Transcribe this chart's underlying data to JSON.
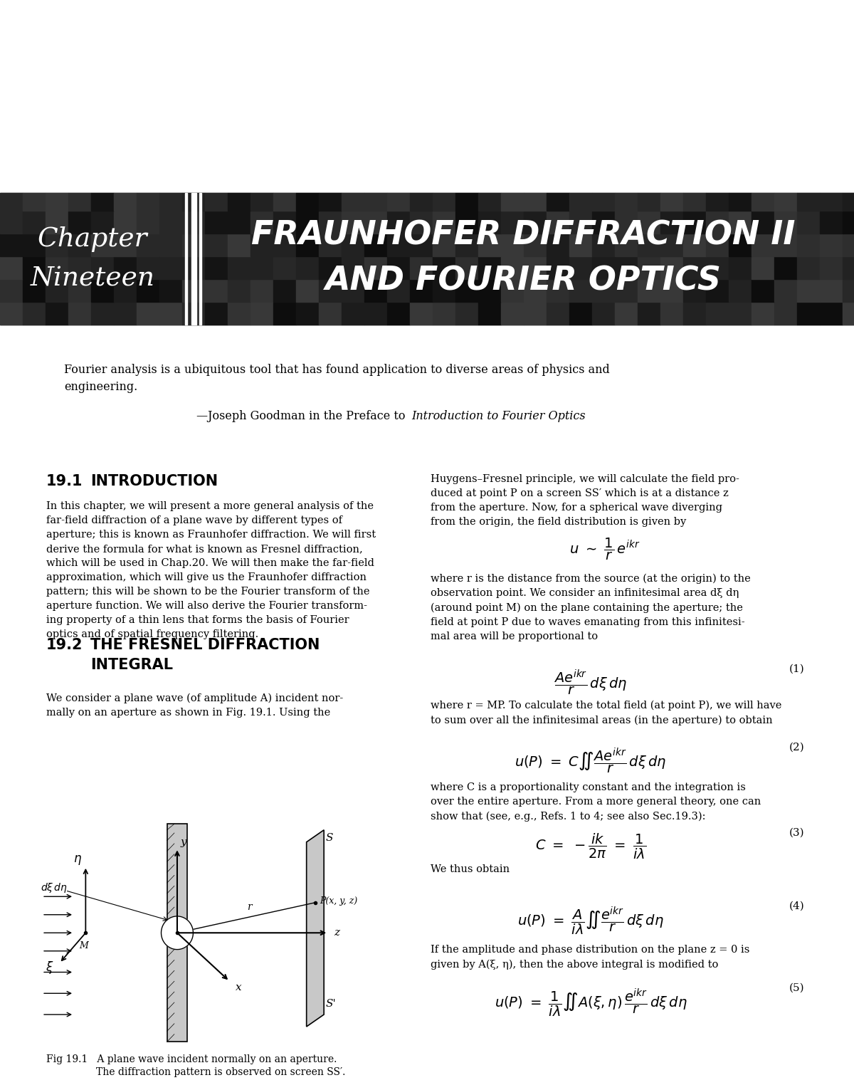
{
  "bg_color": "#ffffff",
  "header_bg": "#1c1c1c",
  "chapter_word1": "Chapter",
  "chapter_word2": "Nineteen",
  "title_line1": "FRAUNHOFER DIFFRACTION II",
  "title_line2": "AND FOURIER OPTICS",
  "quote_line1": "Fourier analysis is a ubiquitous tool that has found application to diverse areas of physics and",
  "quote_line2": "engineering.",
  "quote_attr_plain": "—Joseph Goodman in the Preface to ",
  "quote_attr_italic": "Introduction to Fourier Optics",
  "sec1_num": "19.1",
  "sec1_title": "INTRODUCTION",
  "sec2_num": "19.2",
  "sec2_title_line1": "THE FRESNEL DIFFRACTION",
  "sec2_title_line2": "INTEGRAL",
  "intro_para": "In this chapter, we will present a more general analysis of the\nfar-field diffraction of a plane wave by different types of\naperture; this is known as Fraunhofer diffraction. We will first\nderive the formula for what is known as Fresnel diffraction,\nwhich will be used in Chap.20. We will then make the far-field\napproximation, which will give us the Fraunhofer diffraction\npattern; this will be shown to be the Fourier transform of the\naperture function. We will also derive the Fourier transform-\ning property of a thin lens that forms the basis of Fourier\noptics and of spatial frequency filtering.",
  "sec2_para": "We consider a plane wave (of amplitude A) incident nor-\nmally on an aperture as shown in Fig. 19.1. Using the",
  "right_para1": "Huygens–Fresnel principle, we will calculate the field pro-\nduced at point P on a screen SS′ which is at a distance z\nfrom the aperture. Now, for a spherical wave diverging\nfrom the origin, the field distribution is given by",
  "right_para2": "where r is the distance from the source (at the origin) to the\nobservation point. We consider an infinitesimal area dξ dη\n(around point M) on the plane containing the aperture; the\nfield at point P due to waves emanating from this infinitesi-\nmal area will be proportional to",
  "right_para3": "where r = MP. To calculate the total field (at point P), we will have\nto sum over all the infinitesimal areas (in the aperture) to obtain",
  "right_para4": "where C is a proportionality constant and the integration is\nover the entire aperture. From a more general theory, one can\nshow that (see, e.g., Refs. 1 to 4; see also Sec.19.3):",
  "right_para5": "We thus obtain",
  "right_para6": "If the amplitude and phase distribution on the plane z = 0 is\ngiven by A(ξ, η), then the above integral is modified to",
  "fig_cap1": "Fig 19.1   A plane wave incident normally on an aperture.",
  "fig_cap2": "                The diffraction pattern is observed on screen SS′."
}
